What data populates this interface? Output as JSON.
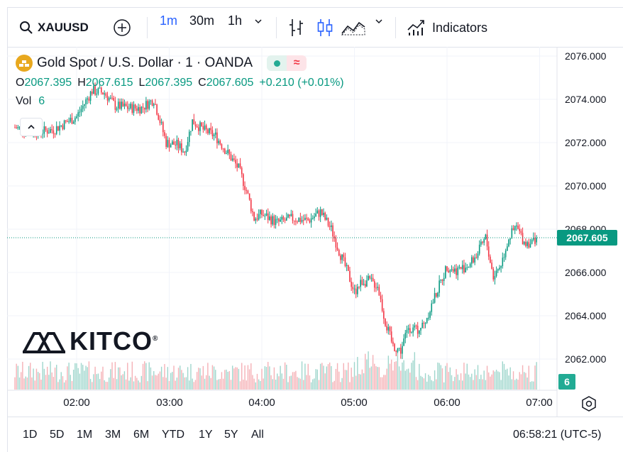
{
  "toolbar": {
    "symbol": "XAUUSD",
    "intervals": [
      {
        "label": "1m",
        "active": true
      },
      {
        "label": "30m",
        "active": false
      },
      {
        "label": "1h",
        "active": false
      }
    ],
    "indicators_label": "Indicators",
    "icons": {
      "search": "search-icon",
      "add": "plus-circle-icon",
      "interval_menu": "chevron-down-icon",
      "bars": "bar-chart-icon",
      "candles": "candlestick-icon",
      "area": "area-chart-icon",
      "chart_type_menu": "chevron-down-icon",
      "indicators": "indicators-icon"
    }
  },
  "legend": {
    "title": "Gold Spot / U.S. Dollar · 1 · OANDA",
    "open_key": "O",
    "open": "2067.395",
    "high_key": "H",
    "high": "2067.615",
    "low_key": "L",
    "low": "2067.395",
    "close_key": "C",
    "close": "2067.605",
    "change": "+0.210 (+0.01%)",
    "vol_label": "Vol",
    "vol_value": "6"
  },
  "price_axis": {
    "labels": [
      "2076.000",
      "2074.000",
      "2072.000",
      "2070.000",
      "2068.000",
      "2066.000",
      "2064.000",
      "2062.000"
    ],
    "current_price": "2067.605",
    "current_volume": "6"
  },
  "time_axis": {
    "labels": [
      "02:00",
      "03:00",
      "04:00",
      "05:00",
      "06:00",
      "07:00"
    ]
  },
  "watermark": {
    "brand": "KITCO",
    "reg": "®"
  },
  "bottom_bar": {
    "ranges": [
      "1D",
      "5D",
      "1M",
      "3M",
      "6M",
      "YTD",
      "1Y",
      "5Y",
      "All"
    ],
    "clock": "06:58:21 (UTC-5)"
  },
  "colors": {
    "up": "#089981",
    "down": "#f23645",
    "vol_up": "#9fd6cc",
    "vol_down": "#f5b1b6",
    "accent": "#2962ff",
    "grid": "#f0f3fa"
  },
  "chart_data": {
    "type": "candlestick",
    "symbol": "XAUUSD",
    "interval": "1m",
    "ylim": [
      2061.0,
      2076.5
    ],
    "x_start": "01:20",
    "x_end": "06:58",
    "grid": true,
    "close_path": [
      [
        "01:20",
        2072.7
      ],
      [
        "01:35",
        2072.5
      ],
      [
        "01:45",
        2072.6
      ],
      [
        "02:00",
        2073.2
      ],
      [
        "02:05",
        2073.8
      ],
      [
        "02:10",
        2074.4
      ],
      [
        "02:18",
        2074.3
      ],
      [
        "02:25",
        2073.7
      ],
      [
        "02:35",
        2073.6
      ],
      [
        "02:42",
        2073.6
      ],
      [
        "02:50",
        2074.0
      ],
      [
        "02:58",
        2072.0
      ],
      [
        "03:05",
        2071.9
      ],
      [
        "03:10",
        2071.6
      ],
      [
        "03:15",
        2073.0
      ],
      [
        "03:22",
        2072.6
      ],
      [
        "03:30",
        2072.3
      ],
      [
        "03:37",
        2071.6
      ],
      [
        "03:45",
        2070.8
      ],
      [
        "03:50",
        2069.8
      ],
      [
        "03:55",
        2068.5
      ],
      [
        "04:00",
        2068.7
      ],
      [
        "04:10",
        2068.3
      ],
      [
        "04:20",
        2068.5
      ],
      [
        "04:30",
        2068.4
      ],
      [
        "04:38",
        2068.8
      ],
      [
        "04:45",
        2068.0
      ],
      [
        "04:50",
        2067.0
      ],
      [
        "04:55",
        2066.1
      ],
      [
        "05:00",
        2065.1
      ],
      [
        "05:05",
        2065.6
      ],
      [
        "05:10",
        2065.6
      ],
      [
        "05:15",
        2065.4
      ],
      [
        "05:20",
        2063.7
      ],
      [
        "05:25",
        2062.6
      ],
      [
        "05:30",
        2062.4
      ],
      [
        "05:35",
        2063.5
      ],
      [
        "05:40",
        2063.3
      ],
      [
        "05:45",
        2063.6
      ],
      [
        "05:50",
        2064.5
      ],
      [
        "05:55",
        2065.4
      ],
      [
        "06:00",
        2066.3
      ],
      [
        "06:05",
        2066.1
      ],
      [
        "06:10",
        2066.2
      ],
      [
        "06:15",
        2066.4
      ],
      [
        "06:20",
        2066.9
      ],
      [
        "06:25",
        2067.6
      ],
      [
        "06:30",
        2065.8
      ],
      [
        "06:35",
        2066.4
      ],
      [
        "06:40",
        2067.6
      ],
      [
        "06:45",
        2068.1
      ],
      [
        "06:50",
        2067.4
      ],
      [
        "06:55",
        2067.4
      ],
      [
        "06:58",
        2067.605
      ]
    ],
    "last": {
      "open": 2067.395,
      "high": 2067.615,
      "low": 2067.395,
      "close": 2067.605,
      "change": 0.21,
      "change_pct": 0.01,
      "volume": 6
    }
  }
}
